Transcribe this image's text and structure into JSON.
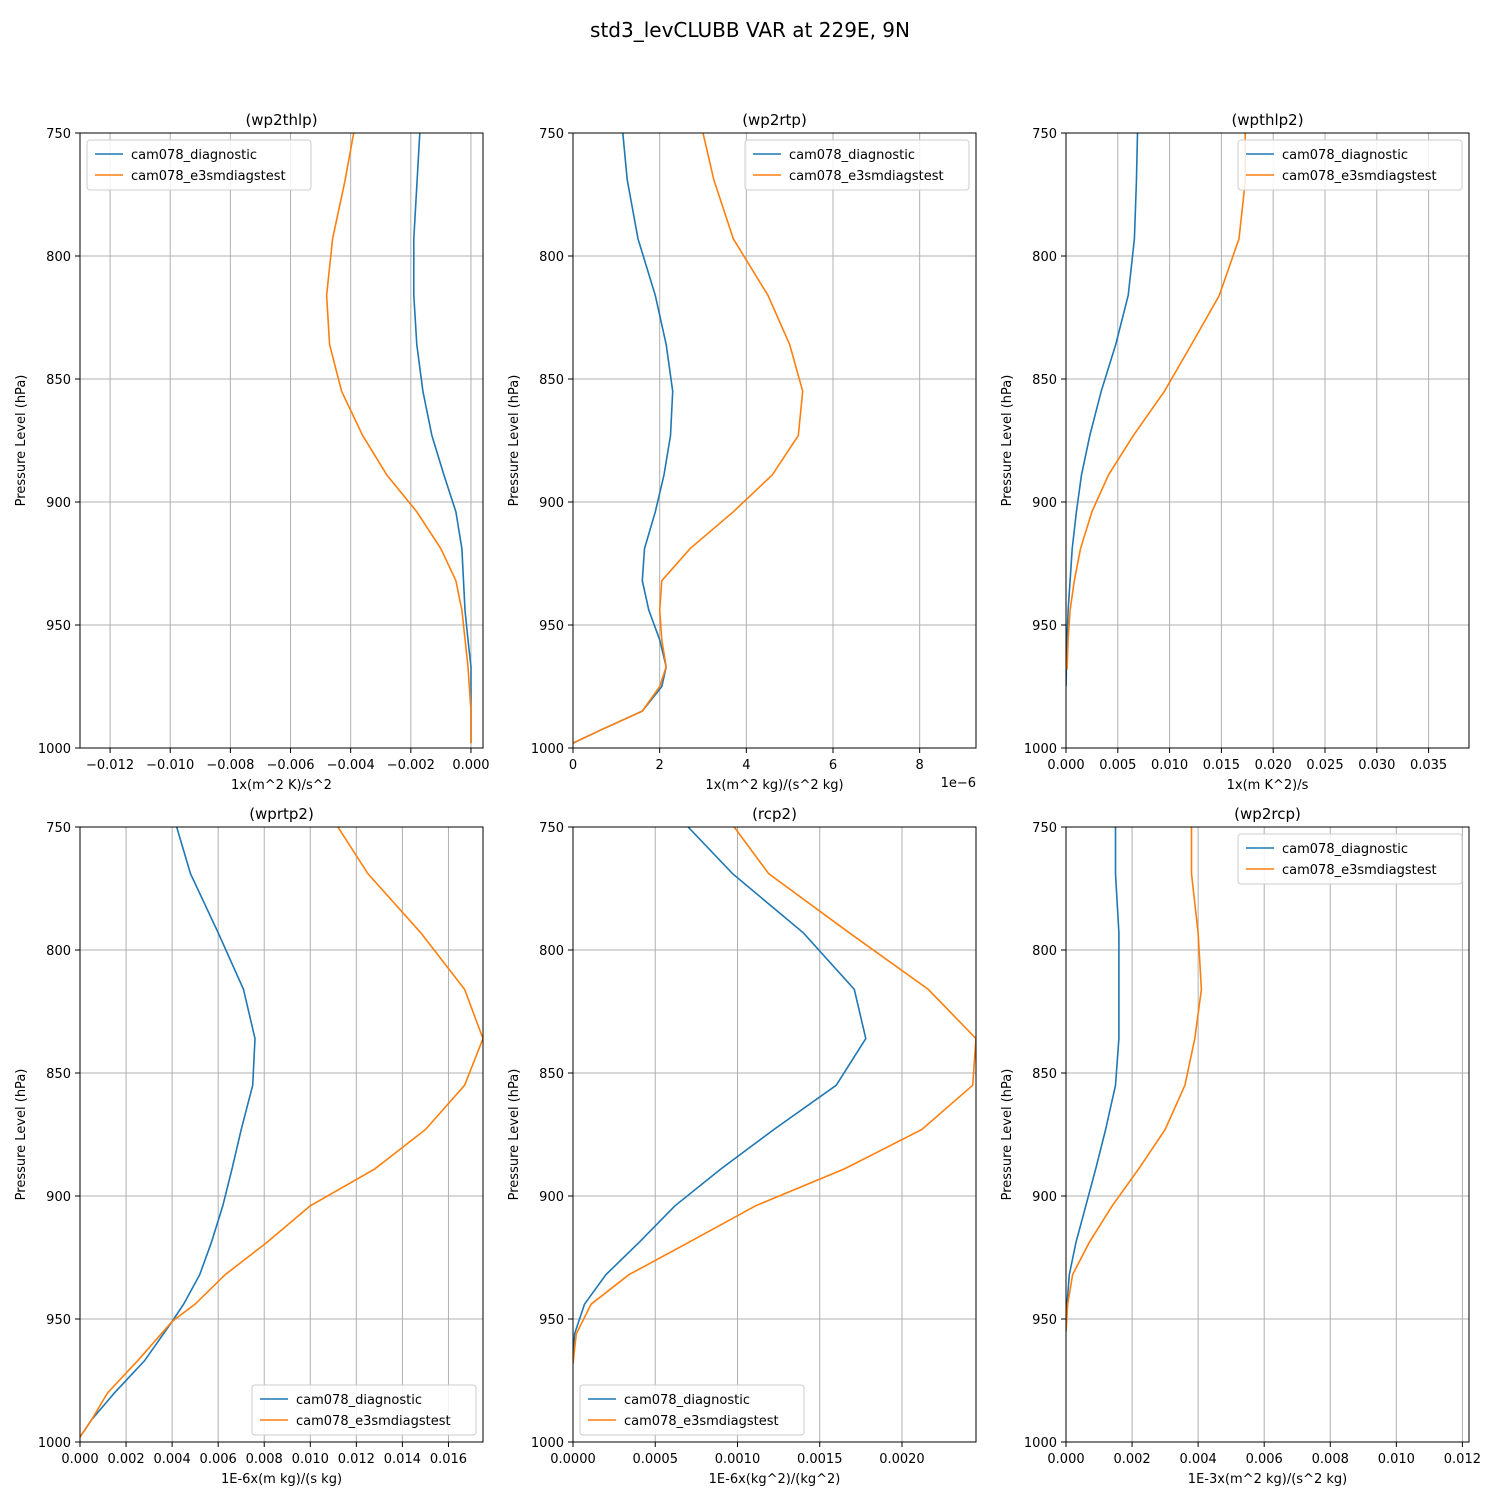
{
  "title": "std3_levCLUBB VAR at 229E, 9N",
  "colors": {
    "diagnostic": "#1f77b4",
    "e3smdiagstest": "#ff7f0e",
    "grid": "#b0b0b0"
  },
  "chart_data": [
    {
      "type": "line",
      "title": "(wp2thlp)",
      "xlabel": "1x(m^2 K)/s^2",
      "ylabel": "Pressure Level (hPa)",
      "xlim": [
        -0.013,
        0.0004
      ],
      "ylim": [
        1000,
        750
      ],
      "xticks": [
        -0.012,
        -0.01,
        -0.008,
        -0.006,
        -0.004,
        -0.002,
        0.0
      ],
      "xtick_labels": [
        "−0.012",
        "−0.010",
        "−0.008",
        "−0.006",
        "−0.004",
        "−0.002",
        "0.000"
      ],
      "yticks": [
        750,
        800,
        850,
        900,
        950,
        1000
      ],
      "offset_text": "",
      "grid": true,
      "legend": "top-left",
      "series": [
        {
          "name": "cam078_diagnostic",
          "x": [
            -0.0017,
            -0.0019,
            -0.0019,
            -0.0018,
            -0.0016,
            -0.0013,
            -0.0009,
            -0.0005,
            -0.0003,
            -0.00025,
            -0.0002,
            -0.0001,
            0.0,
            0.0
          ],
          "y": [
            750,
            793,
            816,
            836,
            855,
            873,
            889,
            904,
            919,
            932,
            944,
            956,
            967,
            998
          ]
        },
        {
          "name": "cam078_e3smdiagstest",
          "x": [
            -0.0039,
            -0.0042,
            -0.0046,
            -0.0048,
            -0.0047,
            -0.0043,
            -0.0036,
            -0.0028,
            -0.0018,
            -0.001,
            -0.0005,
            -0.0003,
            -0.0001,
            0.0,
            0.0
          ],
          "y": [
            750,
            770,
            793,
            816,
            836,
            855,
            873,
            889,
            904,
            919,
            932,
            944,
            967,
            985,
            998
          ]
        }
      ]
    },
    {
      "type": "line",
      "title": "(wp2rtp)",
      "xlabel": "1x(m^2 kg)/(s^2 kg)",
      "ylabel": "Pressure Level (hPa)",
      "xlim": [
        0,
        9.3
      ],
      "ylim": [
        1000,
        750
      ],
      "xticks": [
        0,
        2,
        4,
        6,
        8
      ],
      "xtick_labels": [
        "0",
        "2",
        "4",
        "6",
        "8"
      ],
      "yticks": [
        750,
        800,
        850,
        900,
        950,
        1000
      ],
      "offset_text": "1e−6",
      "grid": true,
      "legend": "top-right",
      "series": [
        {
          "name": "cam078_diagnostic",
          "x": [
            1.15,
            1.25,
            1.5,
            1.9,
            2.15,
            2.3,
            2.25,
            2.1,
            1.9,
            1.65,
            1.6,
            1.75,
            2.0,
            2.15,
            2.05,
            1.6,
            0.6,
            0.0
          ],
          "y": [
            750,
            769,
            793,
            816,
            836,
            855,
            873,
            889,
            904,
            919,
            932,
            944,
            956,
            967,
            975,
            985,
            993,
            998
          ]
        },
        {
          "name": "cam078_e3smdiagstest",
          "x": [
            3.0,
            3.25,
            3.7,
            4.5,
            5.0,
            5.3,
            5.2,
            4.6,
            3.7,
            2.7,
            2.05,
            2.0,
            2.05,
            2.15,
            2.0,
            1.6,
            0.6,
            0.0
          ],
          "y": [
            750,
            769,
            793,
            816,
            836,
            855,
            873,
            889,
            904,
            919,
            932,
            944,
            956,
            967,
            975,
            985,
            993,
            998
          ]
        }
      ]
    },
    {
      "type": "line",
      "title": "(wpthlp2)",
      "xlabel": "1x(m K^2)/s",
      "ylabel": "Pressure Level (hPa)",
      "xlim": [
        0,
        0.0389
      ],
      "ylim": [
        1000,
        750
      ],
      "xticks": [
        0.0,
        0.005,
        0.01,
        0.015,
        0.02,
        0.025,
        0.03,
        0.035
      ],
      "xtick_labels": [
        "0.000",
        "0.005",
        "0.010",
        "0.015",
        "0.020",
        "0.025",
        "0.030",
        "0.035"
      ],
      "yticks": [
        750,
        800,
        850,
        900,
        950,
        1000
      ],
      "offset_text": "",
      "grid": true,
      "legend": "top-right",
      "series": [
        {
          "name": "cam078_diagnostic",
          "x": [
            0.0069,
            0.0068,
            0.0066,
            0.006,
            0.0048,
            0.0034,
            0.0023,
            0.0015,
            0.001,
            0.0006,
            0.0004,
            0.0002,
            0.0001,
            0.0
          ],
          "y": [
            750,
            770,
            793,
            816,
            836,
            855,
            873,
            889,
            904,
            919,
            932,
            944,
            956,
            975
          ]
        },
        {
          "name": "cam078_e3smdiagstest",
          "x": [
            0.0173,
            0.0173,
            0.0167,
            0.0148,
            0.0121,
            0.0095,
            0.0065,
            0.0041,
            0.0025,
            0.0014,
            0.0008,
            0.0004,
            0.0002,
            0.0001
          ],
          "y": [
            750,
            770,
            793,
            816,
            836,
            855,
            873,
            889,
            904,
            919,
            932,
            944,
            956,
            968
          ]
        }
      ]
    },
    {
      "type": "line",
      "title": "(wprtp2)",
      "xlabel": "1E-6x(m kg)/(s kg)",
      "ylabel": "Pressure Level (hPa)",
      "xlim": [
        0,
        0.0175
      ],
      "ylim": [
        1000,
        750
      ],
      "xticks": [
        0.0,
        0.002,
        0.004,
        0.006,
        0.008,
        0.01,
        0.012,
        0.014,
        0.016
      ],
      "xtick_labels": [
        "0.000",
        "0.002",
        "0.004",
        "0.006",
        "0.008",
        "0.010",
        "0.012",
        "0.014",
        "0.016"
      ],
      "yticks": [
        750,
        800,
        850,
        900,
        950,
        1000
      ],
      "offset_text": "",
      "grid": true,
      "legend": "bottom-right",
      "series": [
        {
          "name": "cam078_diagnostic",
          "x": [
            0.0042,
            0.0048,
            0.006,
            0.0071,
            0.0076,
            0.0075,
            0.007,
            0.0066,
            0.0062,
            0.0057,
            0.0052,
            0.0045,
            0.004,
            0.0028,
            0.0015,
            0.0005,
            0.0
          ],
          "y": [
            750,
            769,
            793,
            816,
            836,
            855,
            873,
            889,
            904,
            919,
            932,
            944,
            951,
            967,
            980,
            991,
            998
          ]
        },
        {
          "name": "cam078_e3smdiagstest",
          "x": [
            0.0112,
            0.0125,
            0.0148,
            0.0167,
            0.0175,
            0.0167,
            0.015,
            0.0128,
            0.01,
            0.0081,
            0.0063,
            0.005,
            0.004,
            0.0025,
            0.0012,
            0.0005,
            0.0
          ],
          "y": [
            750,
            769,
            793,
            816,
            836,
            855,
            873,
            889,
            904,
            919,
            932,
            944,
            951,
            967,
            980,
            991,
            998
          ]
        }
      ]
    },
    {
      "type": "line",
      "title": "(rcp2)",
      "xlabel": "1E-6x(kg^2)/(kg^2)",
      "ylabel": "Pressure Level (hPa)",
      "xlim": [
        0,
        0.00245
      ],
      "ylim": [
        1000,
        750
      ],
      "xticks": [
        0.0,
        0.0005,
        0.001,
        0.0015,
        0.002
      ],
      "xtick_labels": [
        "0.0000",
        "0.0005",
        "0.0010",
        "0.0015",
        "0.0020"
      ],
      "yticks": [
        750,
        800,
        850,
        900,
        950,
        1000
      ],
      "offset_text": "",
      "grid": true,
      "legend": "bottom-left",
      "series": [
        {
          "name": "cam078_diagnostic",
          "x": [
            0.0007,
            0.00097,
            0.0014,
            0.00171,
            0.00178,
            0.0016,
            0.00122,
            0.0009,
            0.00062,
            0.0004,
            0.0002,
            7e-05,
            1e-05,
            0.0
          ],
          "y": [
            750,
            769,
            793,
            816,
            836,
            855,
            873,
            889,
            904,
            919,
            932,
            944,
            956,
            968
          ]
        },
        {
          "name": "cam078_e3smdiagstest",
          "x": [
            0.00098,
            0.00119,
            0.00168,
            0.00216,
            0.00245,
            0.00243,
            0.00212,
            0.00165,
            0.00111,
            0.0007,
            0.00034,
            0.00011,
            2e-05,
            0.0
          ],
          "y": [
            750,
            769,
            793,
            816,
            836,
            855,
            873,
            889,
            904,
            919,
            932,
            944,
            956,
            968
          ]
        }
      ]
    },
    {
      "type": "line",
      "title": "(wp2rcp)",
      "xlabel": "1E-3x(m^2 kg)/(s^2 kg)",
      "ylabel": "Pressure Level (hPa)",
      "xlim": [
        0,
        0.0122
      ],
      "ylim": [
        1000,
        750
      ],
      "xticks": [
        0.0,
        0.002,
        0.004,
        0.006,
        0.008,
        0.01,
        0.012
      ],
      "xtick_labels": [
        "0.000",
        "0.002",
        "0.004",
        "0.006",
        "0.008",
        "0.010",
        "0.012"
      ],
      "yticks": [
        750,
        800,
        850,
        900,
        950,
        1000
      ],
      "offset_text": "",
      "grid": true,
      "legend": "top-right",
      "series": [
        {
          "name": "cam078_diagnostic",
          "x": [
            0.0015,
            0.0015,
            0.0016,
            0.0016,
            0.0016,
            0.0015,
            0.0012,
            0.0009,
            0.0006,
            0.0003,
            0.0001,
            3e-05,
            0.0
          ],
          "y": [
            750,
            769,
            793,
            816,
            836,
            855,
            873,
            889,
            904,
            919,
            932,
            944,
            955
          ]
        },
        {
          "name": "cam078_e3smdiagstest",
          "x": [
            0.0038,
            0.0038,
            0.004,
            0.0041,
            0.0039,
            0.0036,
            0.003,
            0.0022,
            0.0014,
            0.0007,
            0.0002,
            5e-05,
            0.0
          ],
          "y": [
            750,
            769,
            793,
            816,
            836,
            855,
            873,
            889,
            904,
            919,
            932,
            944,
            955
          ]
        }
      ]
    }
  ]
}
